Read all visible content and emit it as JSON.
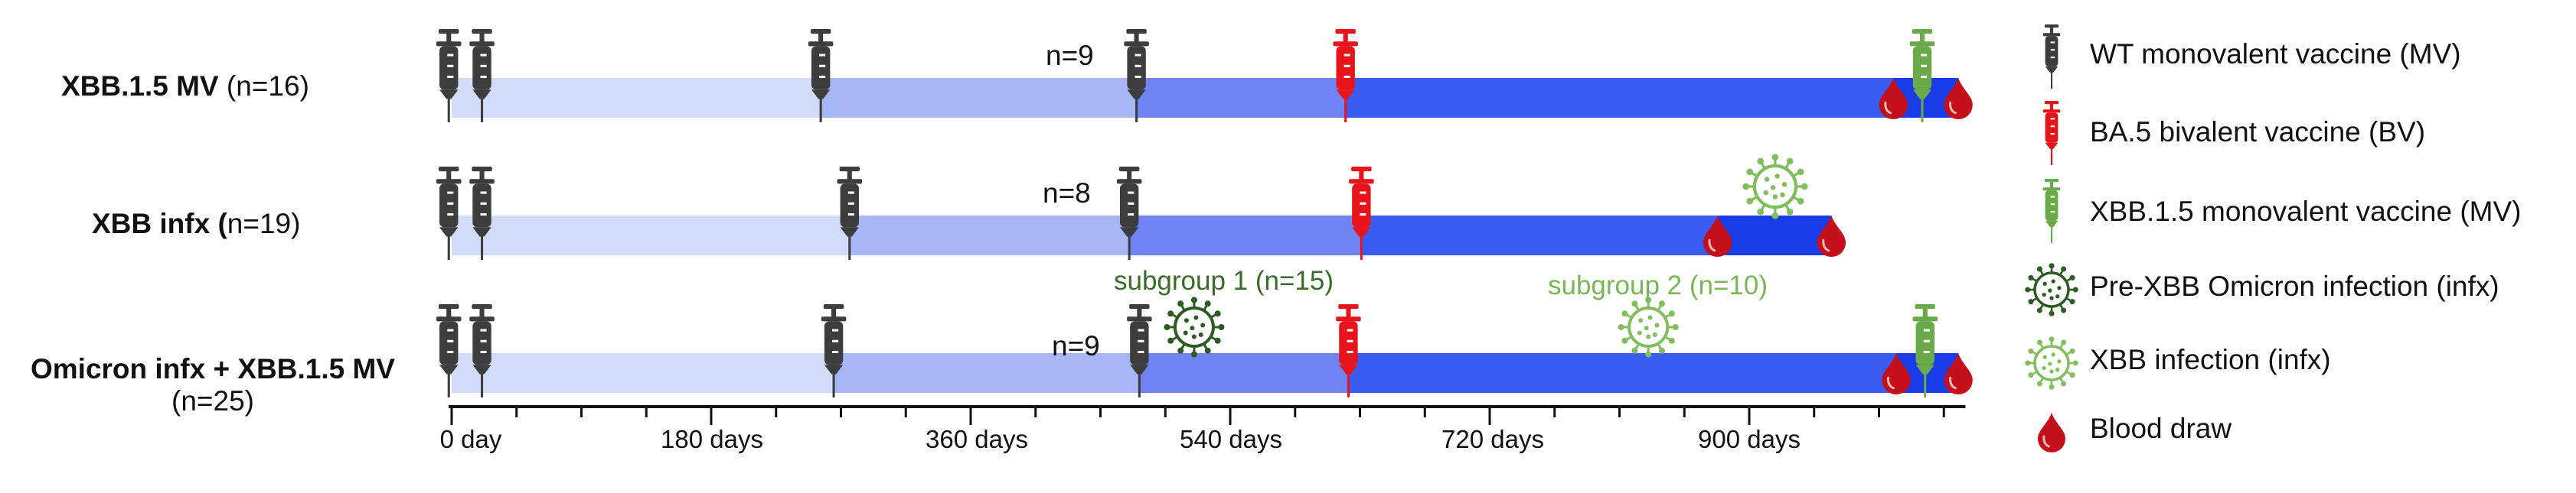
{
  "rows": [
    {
      "bold": "XBB.1.5 MV",
      "rest": " (n=16)",
      "n": "n=9"
    },
    {
      "bold": "XBB infx (",
      "rest": "n=19)",
      "n": "n=8"
    },
    {
      "bold": "Omicron infx + XBB.1.5 MV",
      "line2": "(n=25)",
      "n": "n=9"
    }
  ],
  "subgroups": {
    "s1": "subgroup 1 (n=15)",
    "s2": "subgroup 2 (n=10)"
  },
  "axis": {
    "ticks": [
      "0 day",
      "180 days",
      "360 days",
      "540 days",
      "720 days",
      "900 days"
    ]
  },
  "legend": [
    {
      "icon": "syringe-dark",
      "label": "WT monovalent vaccine (MV)"
    },
    {
      "icon": "syringe-red",
      "label": "BA.5 bivalent vaccine (BV)"
    },
    {
      "icon": "syringe-green",
      "label": "XBB.1.5 monovalent vaccine (MV)"
    },
    {
      "icon": "virus-dark-green",
      "label": "Pre-XBB Omicron infection (infx)"
    },
    {
      "icon": "virus-light-green",
      "label": "XBB infection (infx)"
    },
    {
      "icon": "blood-drop",
      "label": "Blood draw"
    }
  ],
  "colors": {
    "dark": "#3d3d3d",
    "red": "#e8141c",
    "green": "#6aaa4a",
    "virus_dark": "#2f5a24",
    "virus_light": "#82bd5e",
    "bar1": "#d2dcf8",
    "bar2": "#a7b6f5",
    "bar3": "#7083f2",
    "bar4": "#3b5cf0",
    "bar5": "#1a3ce6"
  }
}
